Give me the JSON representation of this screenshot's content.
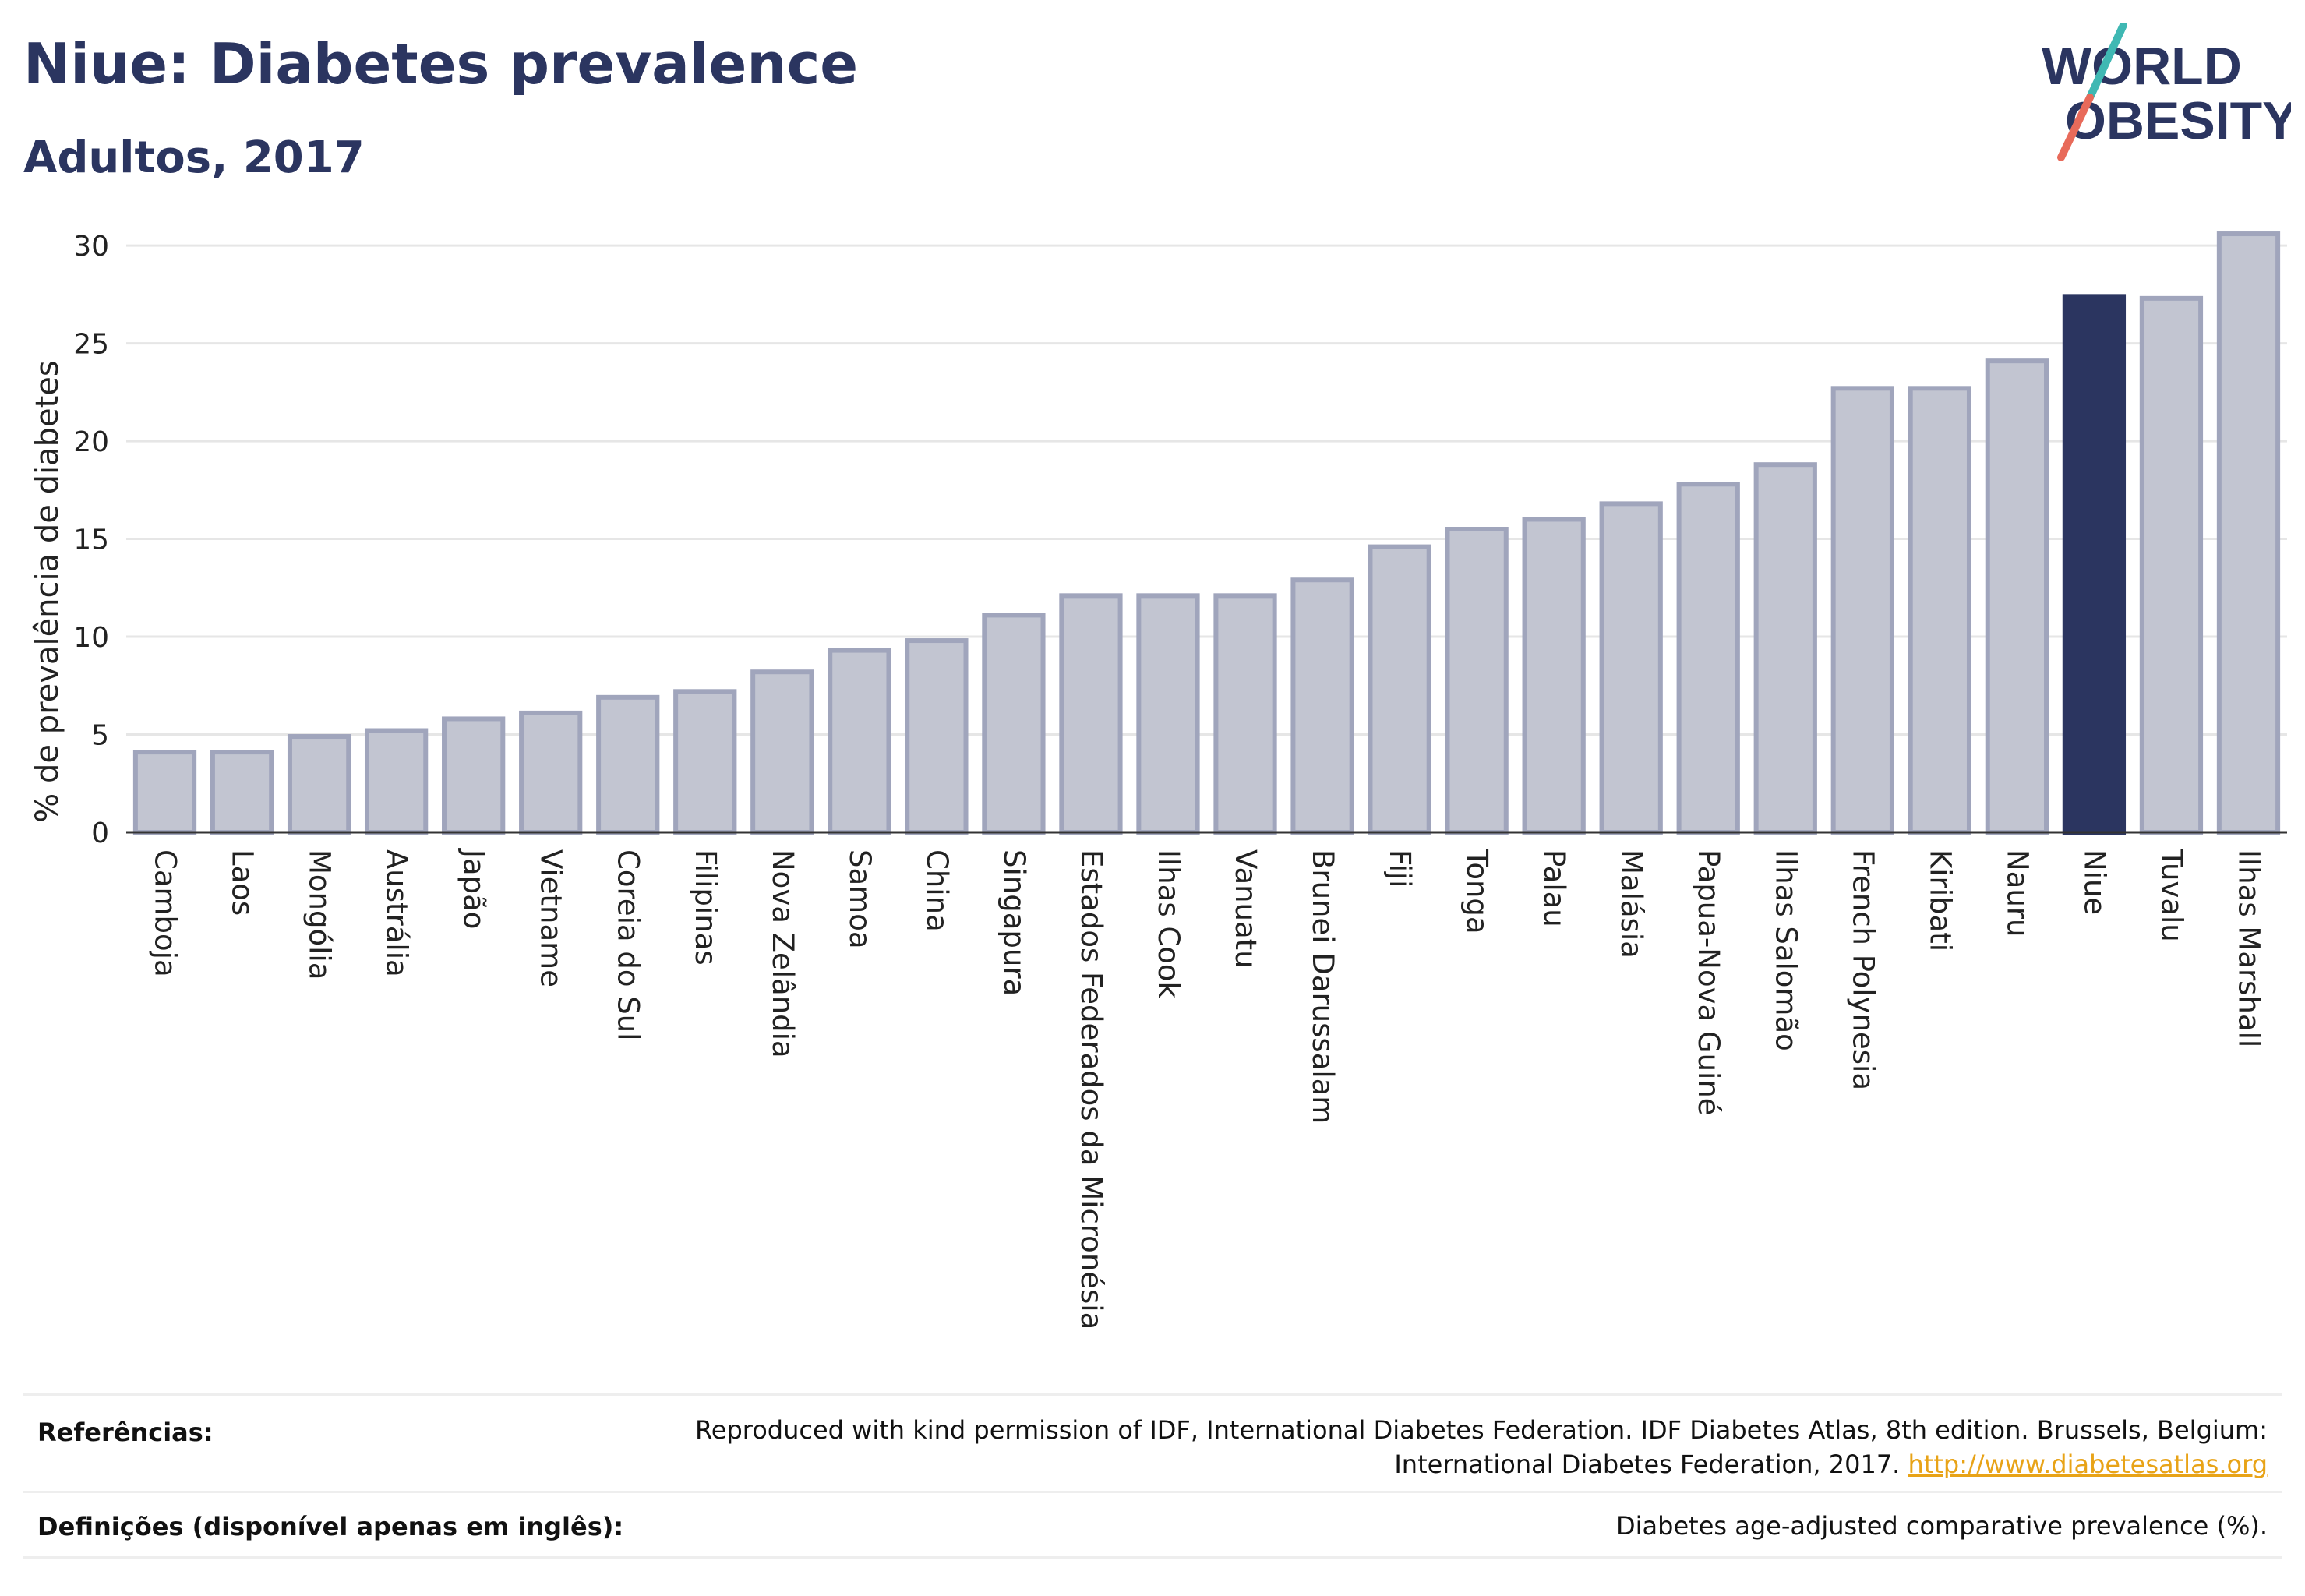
{
  "header": {
    "title": "Niue: Diabetes prevalence",
    "subtitle": "Adultos, 2017"
  },
  "logo": {
    "line1": "WORLD",
    "line2": "OBESITY",
    "accent_teal": "#3fb8b3",
    "accent_coral": "#e86a5a",
    "text_color": "#2b3560"
  },
  "chart_data": {
    "type": "bar",
    "ylabel": "% de prevalência de diabetes",
    "ylim": [
      0,
      31
    ],
    "yticks": [
      0,
      5,
      10,
      15,
      20,
      25,
      30
    ],
    "grid": true,
    "highlight": "Niue",
    "colors": {
      "bar_fill": "#c2c5d1",
      "bar_border": "#a0a5bc",
      "highlight_fill": "#2b3560",
      "grid": "#e6e6e6",
      "axis": "#333333"
    },
    "categories": [
      "Camboja",
      "Laos",
      "Mongólia",
      "Austrália",
      "Japão",
      "Vietname",
      "Coreia do Sul",
      "Filipinas",
      "Nova Zelândia",
      "Samoa",
      "China",
      "Singapura",
      "Estados Federados da Micronésia",
      "Ilhas Cook",
      "Vanuatu",
      "Brunei Darussalam",
      "Fiji",
      "Tonga",
      "Palau",
      "Malásia",
      "Papua-Nova Guiné",
      "Ilhas Salomão",
      "French Polynesia",
      "Kiribati",
      "Nauru",
      "Niue",
      "Tuvalu",
      "Ilhas Marshall"
    ],
    "values": [
      4.1,
      4.1,
      4.9,
      5.2,
      5.8,
      6.1,
      6.9,
      7.2,
      8.2,
      9.3,
      9.8,
      11.1,
      12.1,
      12.1,
      12.1,
      12.9,
      14.6,
      15.5,
      16.0,
      16.8,
      17.8,
      18.8,
      22.7,
      22.7,
      24.1,
      27.4,
      27.3,
      30.6
    ]
  },
  "footer": {
    "references_label": "Referências:",
    "references_line1": "Reproduced with kind permission of IDF, International Diabetes Federation. IDF Diabetes Atlas, 8th edition. Brussels, Belgium:",
    "references_line2": "International Diabetes Federation, 2017.",
    "references_link": "http://www.diabetesatlas.org",
    "definitions_label": "Definições (disponível apenas em inglês):",
    "definitions_text": "Diabetes age-adjusted comparative prevalence (%)."
  }
}
